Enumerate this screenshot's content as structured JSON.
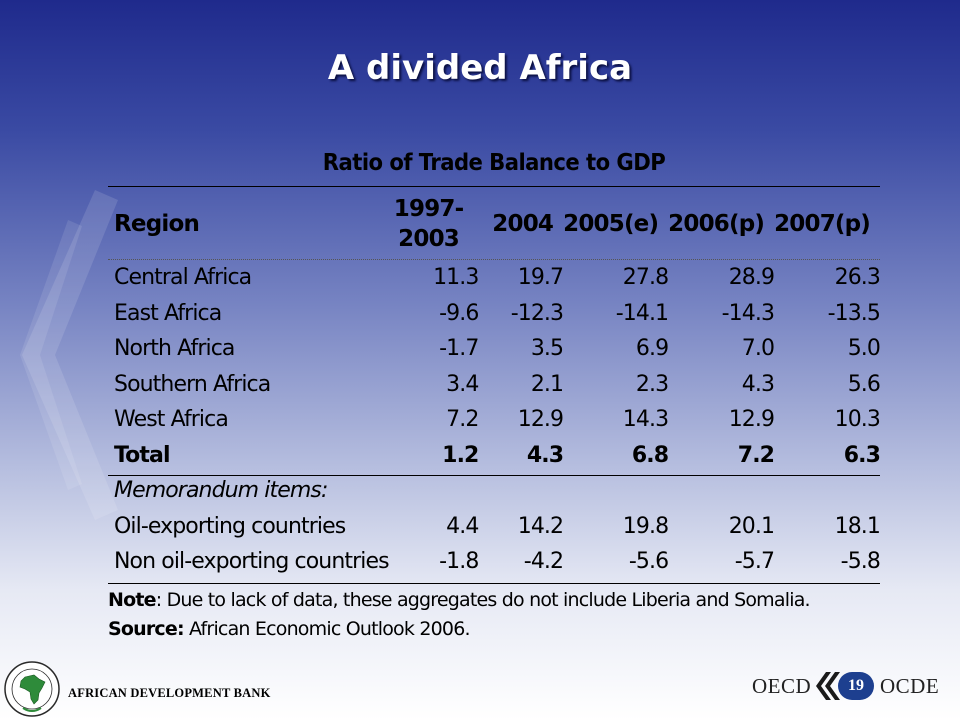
{
  "slide": {
    "title": "A divided Africa"
  },
  "table": {
    "title": "Ratio of Trade Balance to GDP",
    "header": {
      "region": "Region",
      "years_first_line1": "1997-",
      "years_first_line2": "2003",
      "years": [
        "2004",
        "2005(e)",
        "2006(p)",
        "2007(p)"
      ]
    },
    "rows": [
      {
        "region": "Central Africa",
        "values": [
          "11.3",
          "19.7",
          "27.8",
          "28.9",
          "26.3"
        ]
      },
      {
        "region": "East Africa",
        "values": [
          "-9.6",
          "-12.3",
          "-14.1",
          "-14.3",
          "-13.5"
        ]
      },
      {
        "region": "North Africa",
        "values": [
          "-1.7",
          "3.5",
          "6.9",
          "7.0",
          "5.0"
        ]
      },
      {
        "region": "Southern Africa",
        "values": [
          "3.4",
          "2.1",
          "2.3",
          "4.3",
          "5.6"
        ]
      },
      {
        "region": "West Africa",
        "values": [
          "7.2",
          "12.9",
          "14.3",
          "12.9",
          "10.3"
        ]
      }
    ],
    "total": {
      "region": "Total",
      "values": [
        "1.2",
        "4.3",
        "6.8",
        "7.2",
        "6.3"
      ]
    },
    "memo_label": "Memorandum items:",
    "memo_rows": [
      {
        "region": "Oil-exporting countries",
        "values": [
          "4.4",
          "14.2",
          "19.8",
          "20.1",
          "18.1"
        ]
      },
      {
        "region": "Non oil-exporting countries",
        "values": [
          "-1.8",
          "-4.2",
          "-5.6",
          "-5.7",
          "-5.8"
        ]
      }
    ]
  },
  "note": {
    "label": "Note",
    "text": ": Due to lack of data, these aggregates do not include Liberia and Somalia."
  },
  "source": {
    "label": "Source:",
    "text": " African Economic Outlook 2006."
  },
  "footer": {
    "afdb_name": "AFRICAN DEVELOPMENT BANK",
    "oecd_left": "OECD",
    "oecd_right": "OCDE",
    "page_number": "19"
  },
  "colors": {
    "title_text": "#ffffff",
    "badge": "#1d3f8f",
    "background_top": "#1f2a8c",
    "background_bottom": "#ffffff"
  },
  "icons": [
    "afdb-logo-icon",
    "oecd-chevron-icon",
    "background-chevron-icon"
  ]
}
